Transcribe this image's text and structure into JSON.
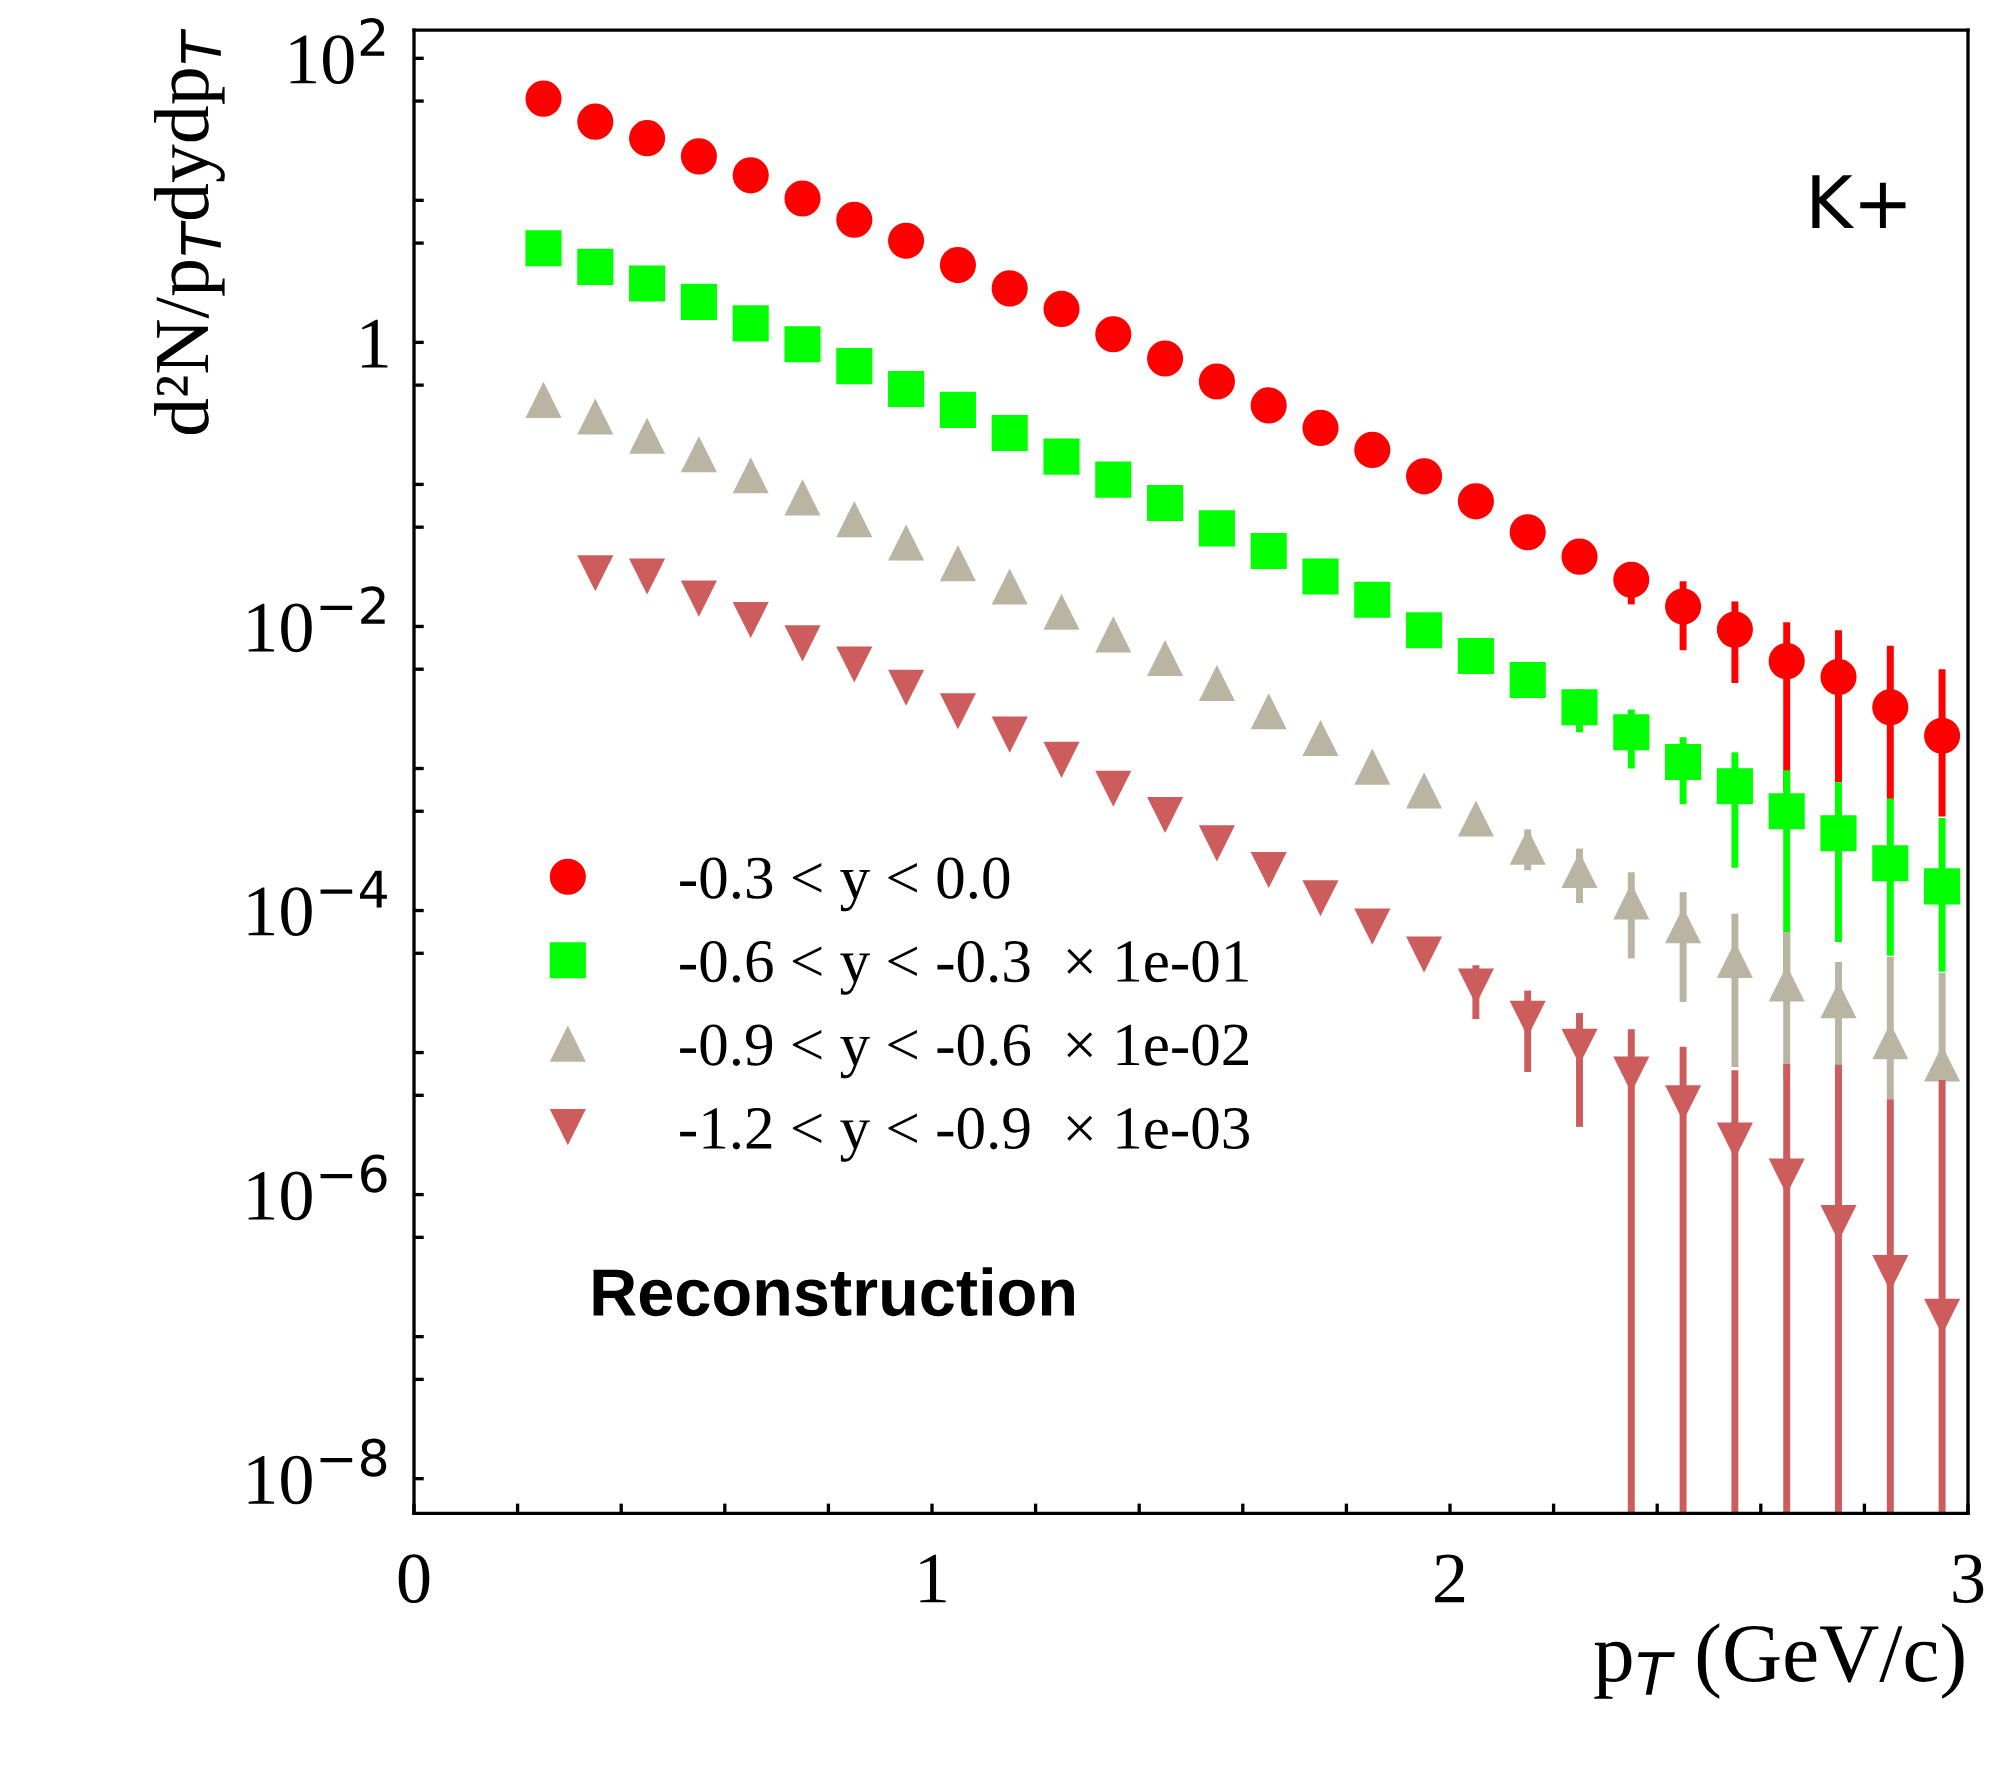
{
  "chart_data": {
    "type": "scatter",
    "xlabel": "p$_{T}$ (GeV/c)",
    "ylabel": "d²N/p$_{T}$dydp$_{T}$",
    "x": [
      0.25,
      0.35,
      0.45,
      0.55,
      0.65,
      0.75,
      0.85,
      0.95,
      1.05,
      1.15,
      1.25,
      1.35,
      1.45,
      1.55,
      1.65,
      1.75,
      1.85,
      1.95,
      2.05,
      2.15,
      2.25,
      2.35,
      2.45,
      2.55,
      2.65,
      2.75,
      2.85,
      2.95
    ],
    "series": [
      {
        "name": "-0.3 < y < 0.0",
        "color": "#ff0000",
        "marker": "circle",
        "values": [
          52,
          35.8,
          27.4,
          20.4,
          15.0,
          10.3,
          7.3,
          5.2,
          3.5,
          2.4,
          1.72,
          1.14,
          0.77,
          0.53,
          0.36,
          0.25,
          0.175,
          0.114,
          0.076,
          0.046,
          0.031,
          0.0213,
          0.0138,
          0.0095,
          0.0057,
          0.0044,
          0.0027,
          0.0017
        ],
        "errors": [
          null,
          null,
          null,
          null,
          null,
          null,
          null,
          null,
          null,
          null,
          null,
          null,
          null,
          null,
          null,
          null,
          null,
          null,
          null,
          null,
          0.003,
          0.007,
          0.007,
          0.0055,
          0.005,
          [
            0.0008,
            0.0094
          ],
          [
            0.0006,
            0.0073
          ],
          [
            0.00046,
            0.005
          ]
        ]
      },
      {
        "name": "-0.6 < y < -0.3  × 1e-01",
        "color": "#00ff00",
        "marker": "square",
        "values": [
          4.6,
          3.4,
          2.6,
          1.93,
          1.36,
          0.97,
          0.68,
          0.47,
          0.335,
          0.23,
          0.157,
          0.108,
          0.074,
          0.049,
          0.034,
          0.0225,
          0.0154,
          0.0094,
          0.0062,
          0.0042,
          0.0027,
          0.0018,
          0.00111,
          0.00075,
          0.0005,
          0.00035,
          0.000215,
          0.000148
        ],
        "errors": [
          null,
          null,
          null,
          null,
          null,
          null,
          null,
          null,
          null,
          null,
          null,
          null,
          null,
          null,
          null,
          null,
          null,
          null,
          null,
          null,
          0.0009,
          0.0008,
          0.00055,
          0.00055,
          0.00047,
          [
            6e-05,
            0.0008
          ],
          [
            4.8e-05,
            0.000615
          ],
          [
            3.7e-05,
            0.000448
          ]
        ]
      },
      {
        "name": "-0.9 < y < -0.6  × 1e-02",
        "color": "#bab5a3",
        "marker": "triangle",
        "values": [
          0.394,
          0.301,
          0.22,
          0.163,
          0.116,
          0.081,
          0.057,
          0.039,
          0.0279,
          0.0191,
          0.0127,
          0.0088,
          0.006,
          0.004,
          0.00253,
          0.00164,
          0.00103,
          0.0007,
          0.000445,
          0.000282,
          0.000193,
          0.000116,
          7.87e-05,
          4.49e-05,
          3.07e-05,
          2.34e-05,
          1.2e-05,
          8.4e-06
        ],
        "errors": [
          null,
          null,
          null,
          null,
          null,
          null,
          null,
          null,
          null,
          null,
          null,
          null,
          null,
          null,
          null,
          null,
          null,
          null,
          null,
          9e-05,
          8e-05,
          7e-05,
          5.6e-05,
          [
            7.9e-06,
            9.49e-05
          ],
          [
            6.7e-06,
            7.07e-05
          ],
          2e-05,
          [
            4.7e-06,
            4.7e-05
          ],
          [
            6.4e-06,
            3.64e-05
          ]
        ]
      },
      {
        "name": "-1.2 < y < -0.9  × 1e-03",
        "color": "#cd5c5c",
        "marker": "triangle-down",
        "values": [
          null,
          0.0237,
          0.0225,
          0.0157,
          0.0111,
          0.0076,
          0.0054,
          0.0037,
          0.00253,
          0.00173,
          0.00115,
          0.00072,
          0.00047,
          0.000297,
          0.000193,
          0.000122,
          7.7e-05,
          4.9e-05,
          2.92e-05,
          1.73e-05,
          1.1e-05,
          7e-06,
          4.4e-06,
          2.4e-06,
          1.34e-06,
          6.3e-07,
          2.8e-07,
          1.38e-07
        ],
        "errors": [
          null,
          null,
          null,
          null,
          null,
          null,
          null,
          null,
          null,
          null,
          null,
          null,
          null,
          null,
          null,
          null,
          null,
          null,
          1.2e-05,
          1e-05,
          8e-06,
          [
            5.7e-09,
            1.46e-05
          ],
          [
            5.7e-09,
            1.1e-05
          ],
          [
            5.7e-09,
            7.5e-06
          ],
          [
            5.7e-09,
            8.3e-06
          ],
          [
            5.7e-09,
            8.2e-06
          ],
          [
            5.7e-09,
            4.7e-06
          ],
          [
            5.7e-09,
            6.4e-06
          ]
        ]
      }
    ],
    "annotations": [
      "K+",
      "Reconstruction"
    ],
    "log": "y",
    "xlim": [
      0,
      3
    ],
    "xticks": [
      0,
      {
        "value": 0.2,
        "label": null
      },
      {
        "value": 0.4,
        "label": null
      },
      {
        "value": 0.6,
        "label": null
      },
      {
        "value": 0.8,
        "label": null
      },
      1,
      {
        "value": 1.2,
        "label": null
      },
      {
        "value": 1.4,
        "label": null
      },
      {
        "value": 1.6,
        "label": null
      },
      {
        "value": 1.8,
        "label": null
      },
      2,
      {
        "value": 2.2,
        "label": null
      },
      {
        "value": 2.4,
        "label": null
      },
      {
        "value": 2.6,
        "label": null
      },
      {
        "value": 2.8,
        "label": null
      },
      3
    ],
    "ylim": [
      5.7e-09,
      158
    ],
    "yticks": [
      {
        "value": 1e-08,
        "label": "10$^{−8}$"
      },
      {
        "value": 5e-08,
        "label": null
      },
      {
        "value": 1e-07,
        "label": null
      },
      {
        "value": 5e-07,
        "label": null
      },
      {
        "value": 1e-06,
        "label": "10$^{−6}$"
      },
      {
        "value": 5e-06,
        "label": null
      },
      {
        "value": 1e-05,
        "label": null
      },
      {
        "value": 5e-05,
        "label": null
      },
      {
        "value": 0.0001,
        "label": "10$^{−4}$"
      },
      {
        "value": 0.0005,
        "label": null
      },
      {
        "value": 0.001,
        "label": null
      },
      {
        "value": 0.005,
        "label": null
      },
      {
        "value": 0.01,
        "label": "10$^{−2}$"
      },
      {
        "value": 0.05,
        "label": null
      },
      {
        "value": 0.1,
        "label": null
      },
      {
        "value": 0.5,
        "label": null
      },
      1,
      {
        "value": 5,
        "label": null
      },
      {
        "value": 10,
        "label": null
      },
      {
        "value": 50,
        "label": null
      },
      {
        "value": 100,
        "label": "10$^{2}$"
      }
    ],
    "legend": "bottom left",
    "grid": false
  }
}
